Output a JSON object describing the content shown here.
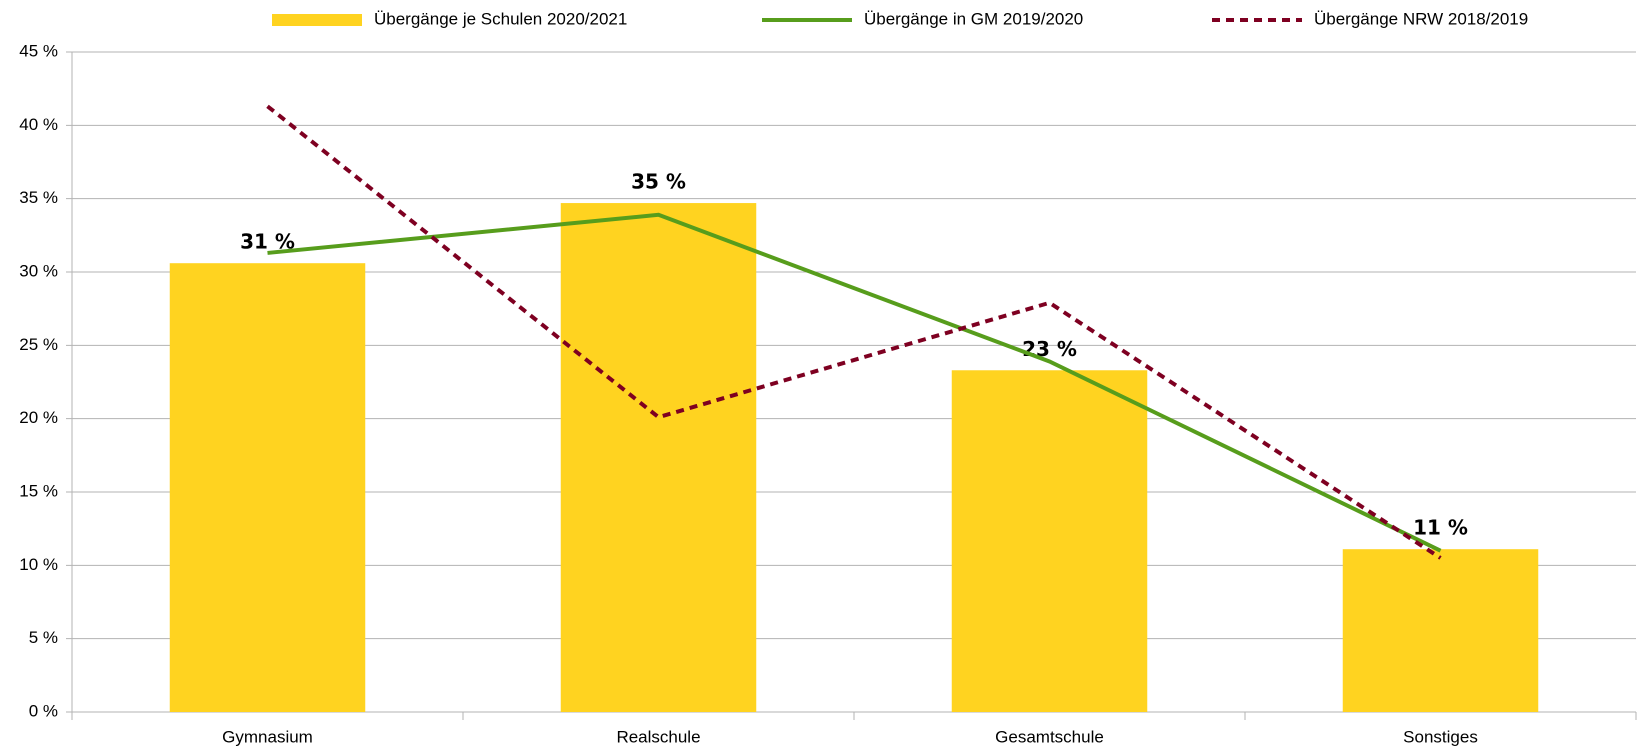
{
  "chart_data": {
    "type": "bar",
    "categories": [
      "Gymnasium",
      "Realschule",
      "Gesamtschule",
      "Sonstiges"
    ],
    "series": [
      {
        "name": "Übergänge je Schulen 2020/2021",
        "type": "bar",
        "color": "#ffd320",
        "values": [
          30.6,
          34.7,
          23.3,
          11.1
        ],
        "value_labels": [
          "31 %",
          "35 %",
          "23 %",
          "11 %"
        ]
      },
      {
        "name": "Übergänge in GM 2019/2020",
        "type": "line",
        "color": "#579d1c",
        "values": [
          31.3,
          33.9,
          23.9,
          11.0
        ]
      },
      {
        "name": "Übergänge NRW 2018/2019",
        "type": "line",
        "dashed": true,
        "color": "#7e0021",
        "values": [
          41.3,
          20.1,
          27.9,
          10.5
        ]
      }
    ],
    "ylim": [
      0,
      45
    ],
    "yticks": [
      {
        "value": 0,
        "label": "0 %"
      },
      {
        "value": 5,
        "label": "5 %"
      },
      {
        "value": 10,
        "label": "10 %"
      },
      {
        "value": 15,
        "label": "15 %"
      },
      {
        "value": 20,
        "label": "20 %"
      },
      {
        "value": 25,
        "label": "25 %"
      },
      {
        "value": 30,
        "label": "30 %"
      },
      {
        "value": 35,
        "label": "35 %"
      },
      {
        "value": 40,
        "label": "40 %"
      },
      {
        "value": 45,
        "label": "45 %"
      }
    ],
    "grid": true,
    "legend": "top"
  }
}
